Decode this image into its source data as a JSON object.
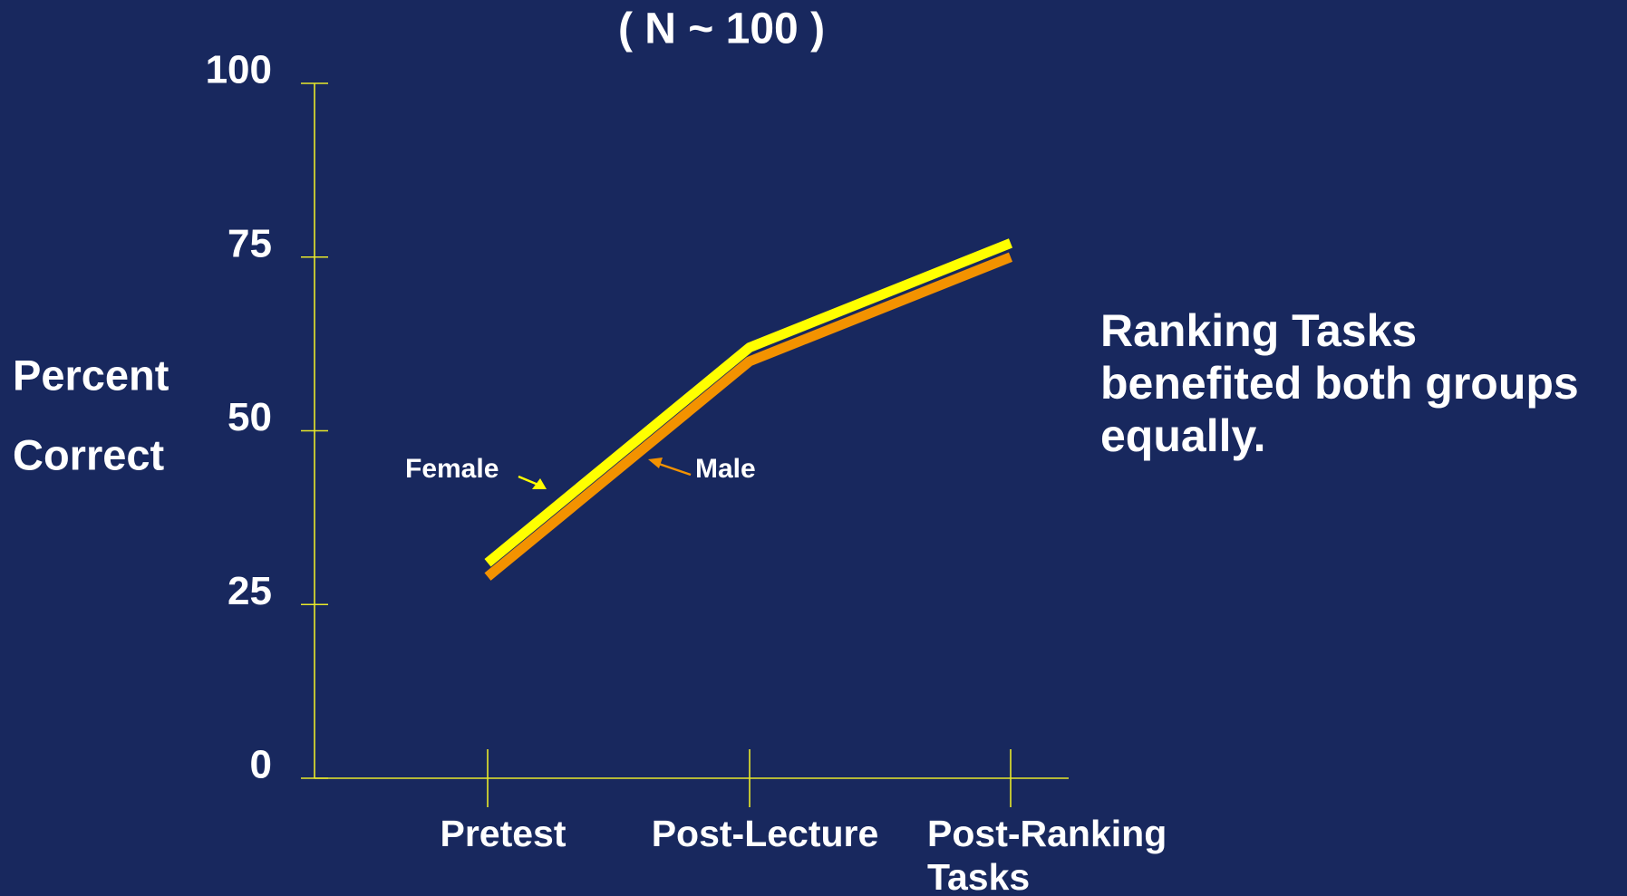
{
  "chart_data": {
    "type": "line",
    "title": "( N ~ 100 )",
    "y_label": [
      "Percent",
      "Correct"
    ],
    "annotation": [
      "Ranking Tasks",
      "benefited both groups",
      "equally."
    ],
    "categories": [
      "Pretest",
      "Post-Lecture",
      "Post-Ranking Tasks"
    ],
    "series": [
      {
        "name": "Female",
        "color": "#ffff00",
        "values": [
          31,
          62,
          77
        ]
      },
      {
        "name": "Male",
        "color": "#f39200",
        "values": [
          29,
          60,
          75
        ]
      }
    ],
    "ylim": [
      0,
      100
    ],
    "yticks": [
      0,
      25,
      50,
      75,
      100
    ]
  }
}
